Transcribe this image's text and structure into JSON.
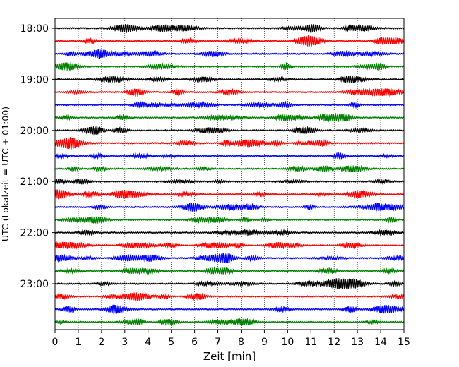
{
  "chart_data": {
    "type": "line",
    "title": "",
    "xlabel": "Zeit  [min]",
    "ylabel": "UTC (Lokalzeit = UTC + 01:00)",
    "xlim": [
      0,
      15
    ],
    "x_ticks": [
      "0",
      "1",
      "2",
      "3",
      "4",
      "5",
      "6",
      "7",
      "8",
      "9",
      "10",
      "11",
      "12",
      "13",
      "14",
      "15"
    ],
    "y_tick_labels": [
      "18:00",
      "19:00",
      "20:00",
      "21:00",
      "22:00",
      "23:00"
    ],
    "rows_per_hour": 4,
    "row_interval_minutes": 15,
    "row_count": 24,
    "first_row_time": "18:00",
    "last_row_time": "23:45",
    "series_colors": [
      "#000000",
      "#ff0000",
      "#0000ff",
      "#008000"
    ],
    "grid": {
      "vertical_dotted": true
    }
  }
}
